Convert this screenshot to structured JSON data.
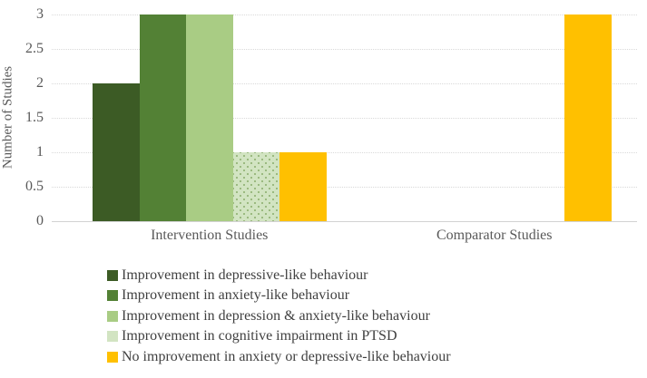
{
  "chart_data": {
    "type": "bar",
    "title": "",
    "xlabel": "",
    "ylabel": "Number of Studies",
    "categories": [
      "Intervention Studies",
      "Comparator Studies"
    ],
    "series": [
      {
        "name": "Improvement in depressive-like behaviour",
        "color": "#3c5b25",
        "pattern": "solid",
        "values": [
          2,
          0
        ]
      },
      {
        "name": "Improvement in anxiety-like behaviour",
        "color": "#538135",
        "pattern": "solid",
        "values": [
          3,
          0
        ]
      },
      {
        "name": "Improvement in depression & anxiety-like behaviour",
        "color": "#a9cc84",
        "pattern": "solid",
        "values": [
          3,
          0
        ]
      },
      {
        "name": "Improvement in cognitive impairment in PTSD",
        "color": "#d2e4c2",
        "pattern": "dotted",
        "values": [
          1,
          0
        ]
      },
      {
        "name": "No improvement in anxiety or depressive-like behaviour",
        "color": "#ffc000",
        "pattern": "solid",
        "values": [
          1,
          3
        ]
      }
    ],
    "ylim": [
      0,
      3
    ],
    "ytick_step": 0.5,
    "yticks": [
      "0",
      "0.5",
      "1",
      "1.5",
      "2",
      "2.5",
      "3"
    ],
    "grid": true,
    "legend_position": "bottom-left",
    "style": {
      "axis_text_color": "#595959",
      "legend_text_color": "#404040",
      "gridline_color": "#d9d9d9",
      "background": "#ffffff"
    }
  }
}
